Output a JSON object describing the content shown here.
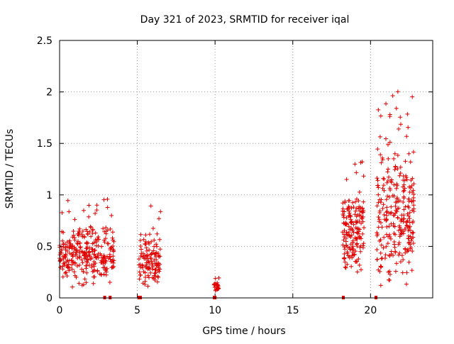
{
  "chart_data": {
    "type": "scatter",
    "title": "Day 321 of 2023, SRMTID for receiver iqal",
    "xlabel": "GPS time / hours",
    "ylabel": "SRMTID / TECUs",
    "xlim": [
      0,
      24
    ],
    "ylim": [
      0,
      2.5
    ],
    "x_ticks": [
      0,
      5,
      10,
      15,
      20
    ],
    "x_tick_labels": [
      "0",
      "5",
      "10",
      "15",
      "20"
    ],
    "y_ticks": [
      0,
      0.5,
      1,
      1.5,
      2,
      2.5
    ],
    "y_tick_labels": [
      "0",
      "0.5",
      "1",
      "1.5",
      "2",
      "2.5"
    ],
    "grid": true,
    "marker": "+",
    "series_color": "#e00000",
    "clusters": [
      {
        "x": [
          0.0,
          3.5
        ],
        "y": [
          0.1,
          0.99
        ],
        "n": 300
      },
      {
        "x": [
          5.1,
          6.5
        ],
        "y": [
          0.07,
          0.9
        ],
        "n": 120
      },
      {
        "x": [
          9.9,
          10.25
        ],
        "y": [
          0.05,
          0.2
        ],
        "n": 25
      },
      {
        "x": [
          18.2,
          19.6
        ],
        "y": [
          0.25,
          1.4
        ],
        "n": 170
      },
      {
        "x": [
          20.4,
          22.8
        ],
        "y": [
          0.1,
          2.03
        ],
        "n": 280
      }
    ],
    "zero_markers_x": [
      2.9,
      3.25,
      5.1,
      5.2,
      9.95,
      10.0,
      18.25,
      20.35
    ]
  }
}
